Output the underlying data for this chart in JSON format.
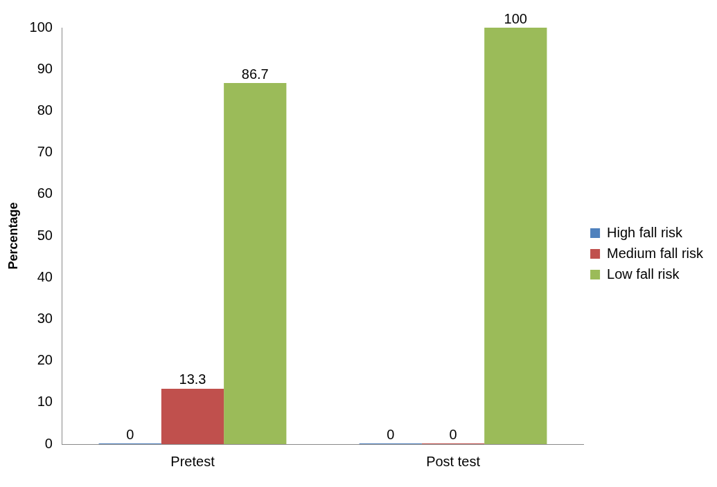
{
  "chart_data": {
    "type": "bar",
    "ylabel": "Percentage",
    "categories": [
      "Pretest",
      "Post test"
    ],
    "series": [
      {
        "name": "High fall risk",
        "color": "#4f81bd",
        "values": [
          0,
          0
        ]
      },
      {
        "name": "Medium fall risk",
        "color": "#c0504d",
        "values": [
          13.3,
          0
        ]
      },
      {
        "name": "Low fall risk",
        "color": "#9bbb59",
        "values": [
          86.7,
          100
        ]
      }
    ],
    "ylim": [
      0,
      100
    ],
    "yticks": [
      0,
      10,
      20,
      30,
      40,
      50,
      60,
      70,
      80,
      90,
      100
    ],
    "grid": false,
    "legend": "right",
    "data_labels": true
  }
}
